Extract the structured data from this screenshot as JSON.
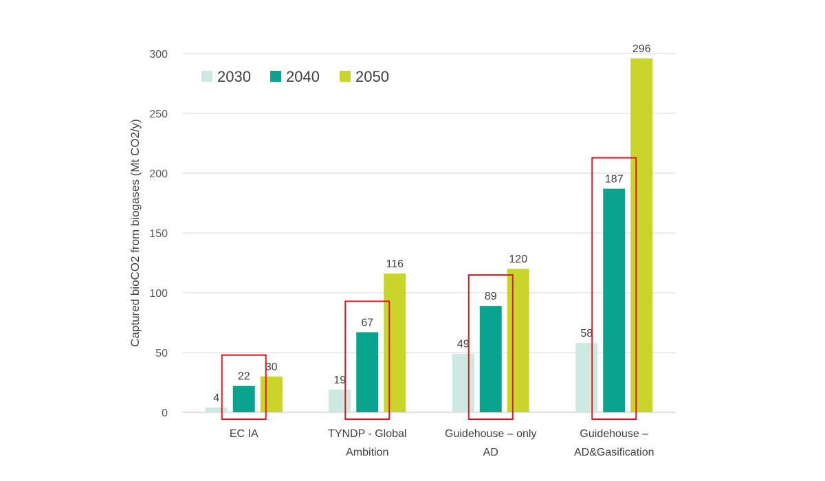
{
  "chart_data": {
    "type": "bar",
    "title": "",
    "xlabel": "",
    "ylabel": "Captured bioCO2 from biogases (Mt CO2/y)",
    "ylim": [
      0,
      300
    ],
    "yticks": [
      0,
      50,
      100,
      150,
      200,
      250,
      300
    ],
    "grid": true,
    "legend_position": "top-left",
    "categories": [
      [
        "EC IA"
      ],
      [
        "TYNDP - Global",
        "Ambition"
      ],
      [
        "Guidehouse – only",
        "AD"
      ],
      [
        "Guidehouse –",
        "AD&Gasification"
      ]
    ],
    "series": [
      {
        "name": "2030",
        "color": "#cde9e2",
        "values": [
          4,
          19,
          49,
          58
        ]
      },
      {
        "name": "2040",
        "color": "#0aa38f",
        "values": [
          22,
          67,
          89,
          187
        ]
      },
      {
        "name": "2050",
        "color": "#cad52c",
        "values": [
          30,
          116,
          120,
          296
        ]
      }
    ],
    "highlight_series": "2040",
    "highlight_color": "#e8141b"
  }
}
